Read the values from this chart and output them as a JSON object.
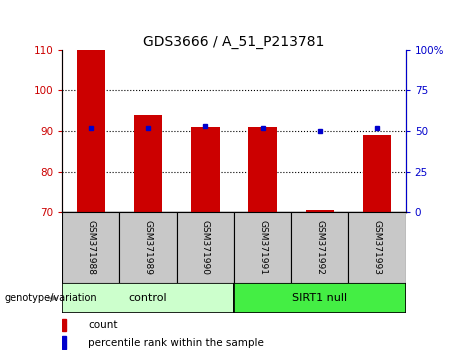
{
  "title": "GDS3666 / A_51_P213781",
  "samples": [
    "GSM371988",
    "GSM371989",
    "GSM371990",
    "GSM371991",
    "GSM371992",
    "GSM371993"
  ],
  "counts": [
    110,
    94,
    91,
    91,
    70.5,
    89
  ],
  "percentiles": [
    52,
    52,
    53,
    52,
    50,
    52
  ],
  "ylim_left": [
    70,
    110
  ],
  "ylim_right": [
    0,
    100
  ],
  "yticks_left": [
    70,
    80,
    90,
    100,
    110
  ],
  "yticks_right": [
    0,
    25,
    50,
    75,
    100
  ],
  "ytick_labels_left": [
    "70",
    "80",
    "90",
    "100",
    "110"
  ],
  "ytick_labels_right": [
    "0",
    "25",
    "50",
    "75",
    "100%"
  ],
  "bar_color": "#cc0000",
  "dot_color": "#0000cc",
  "control_label": "control",
  "sirt1_label": "SIRT1 null",
  "control_color": "#ccffcc",
  "sirt1_color": "#44ee44",
  "group_label": "genotype/variation",
  "legend_count": "count",
  "legend_percentile": "percentile rank within the sample",
  "title_fontsize": 10,
  "tick_fontsize": 7.5,
  "bar_width": 0.5,
  "sample_box_color": "#c8c8c8",
  "grid_lines": [
    80,
    90,
    100
  ]
}
